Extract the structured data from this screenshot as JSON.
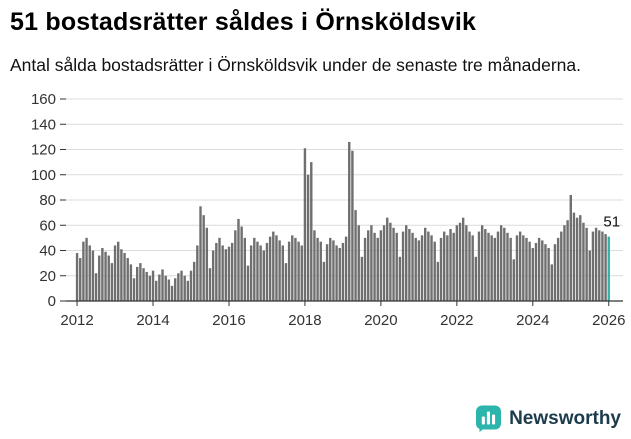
{
  "header": {
    "title": "51 bostadsrätter såldes i Örnsköldsvik",
    "subtitle": "Antal sålda bostadsrätter i Örnsköldsvik under de senaste tre månaderna."
  },
  "chart_data": {
    "type": "bar",
    "title": "51 bostadsrätter såldes i Örnsköldsvik",
    "subtitle": "Antal sålda bostadsrätter i Örnsköldsvik under de senaste tre månaderna.",
    "x_start": "2012-01",
    "x_interval": "month",
    "start_year": 2012,
    "ylim": [
      0,
      160
    ],
    "yticks": [
      0,
      20,
      40,
      60,
      80,
      100,
      120,
      140,
      160
    ],
    "xticks": [
      2012,
      2014,
      2016,
      2018,
      2020,
      2022,
      2024,
      2026
    ],
    "grid": true,
    "bar_color": "#6f6f6f",
    "highlight_color": "#2cb5ac",
    "annotation": "51",
    "latest_value": 51,
    "values": [
      38,
      34,
      47,
      50,
      44,
      40,
      22,
      36,
      42,
      39,
      36,
      30,
      44,
      47,
      41,
      38,
      34,
      29,
      18,
      27,
      30,
      26,
      23,
      20,
      24,
      16,
      21,
      25,
      20,
      17,
      12,
      18,
      22,
      24,
      20,
      16,
      24,
      31,
      44,
      75,
      68,
      58,
      26,
      40,
      46,
      50,
      44,
      41,
      43,
      46,
      56,
      65,
      59,
      50,
      28,
      44,
      50,
      47,
      44,
      40,
      46,
      51,
      55,
      52,
      48,
      44,
      30,
      47,
      52,
      50,
      47,
      44,
      121,
      100,
      110,
      56,
      50,
      47,
      31,
      45,
      50,
      48,
      44,
      42,
      46,
      51,
      126,
      119,
      72,
      60,
      35,
      50,
      56,
      60,
      54,
      50,
      56,
      60,
      66,
      62,
      58,
      54,
      35,
      55,
      60,
      57,
      54,
      50,
      48,
      52,
      58,
      55,
      52,
      47,
      31,
      50,
      55,
      52,
      57,
      54,
      60,
      62,
      66,
      60,
      55,
      52,
      35,
      55,
      60,
      57,
      54,
      52,
      50,
      55,
      60,
      58,
      54,
      50,
      33,
      52,
      55,
      52,
      50,
      47,
      42,
      46,
      50,
      48,
      45,
      42,
      29,
      45,
      50,
      55,
      60,
      64,
      84,
      70,
      66,
      68,
      62,
      58,
      40,
      55,
      58,
      56,
      55,
      53,
      51
    ]
  },
  "footer": {
    "brand": "Newsworthy",
    "brand_color": "#1c3b4b",
    "icon_color": "#2cb5ac"
  }
}
